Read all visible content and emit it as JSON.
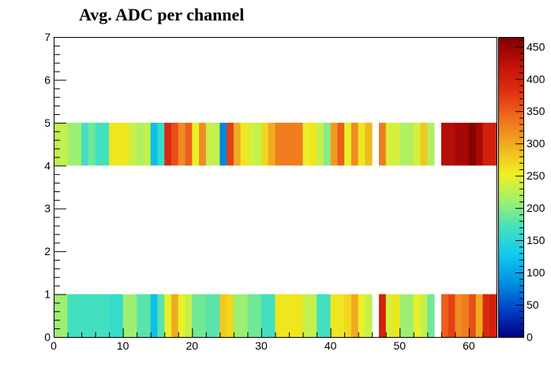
{
  "chart_data": {
    "type": "heatmap",
    "title": "Avg. ADC per channel",
    "xlabel": "",
    "ylabel": "",
    "xlim": [
      0,
      64
    ],
    "ylim": [
      0,
      7
    ],
    "x_ticks": [
      0,
      10,
      20,
      30,
      40,
      50,
      60
    ],
    "y_ticks": [
      0,
      1,
      2,
      3,
      4,
      5,
      6,
      7
    ],
    "colorbar": {
      "zlim": [
        0,
        465
      ],
      "ticks": [
        0,
        50,
        100,
        150,
        200,
        250,
        300,
        350,
        400,
        450
      ],
      "palette": "rainbow",
      "palette_stops": [
        "#000080",
        "#0040c8",
        "#0090e0",
        "#10c8f0",
        "#40e0c0",
        "#a0f070",
        "#f0f020",
        "#f0b020",
        "#f07020",
        "#e03010",
        "#c01008",
        "#800000"
      ]
    },
    "rows": [
      {
        "y_range": [
          0,
          1
        ],
        "values": [
          210,
          210,
          170,
          170,
          170,
          170,
          170,
          170,
          160,
          160,
          210,
          210,
          180,
          180,
          120,
          180,
          250,
          300,
          250,
          230,
          190,
          190,
          180,
          180,
          280,
          270,
          210,
          210,
          190,
          190,
          170,
          170,
          260,
          260,
          260,
          260,
          230,
          230,
          170,
          170,
          260,
          260,
          270,
          300,
          250,
          230,
          null,
          400,
          240,
          260,
          210,
          210,
          250,
          230,
          190,
          null,
          350,
          370,
          320,
          330,
          360,
          300,
          390,
          400
        ]
      },
      {
        "y_range": [
          4,
          5
        ],
        "values": [
          230,
          230,
          210,
          210,
          170,
          190,
          170,
          170,
          260,
          260,
          260,
          230,
          220,
          230,
          120,
          160,
          390,
          360,
          320,
          350,
          250,
          320,
          230,
          230,
          80,
          370,
          300,
          260,
          240,
          230,
          270,
          300,
          330,
          330,
          330,
          330,
          250,
          260,
          230,
          200,
          310,
          350,
          250,
          320,
          260,
          290,
          null,
          330,
          240,
          240,
          220,
          220,
          240,
          280,
          220,
          null,
          430,
          430,
          440,
          440,
          460,
          440,
          400,
          400
        ]
      }
    ]
  }
}
